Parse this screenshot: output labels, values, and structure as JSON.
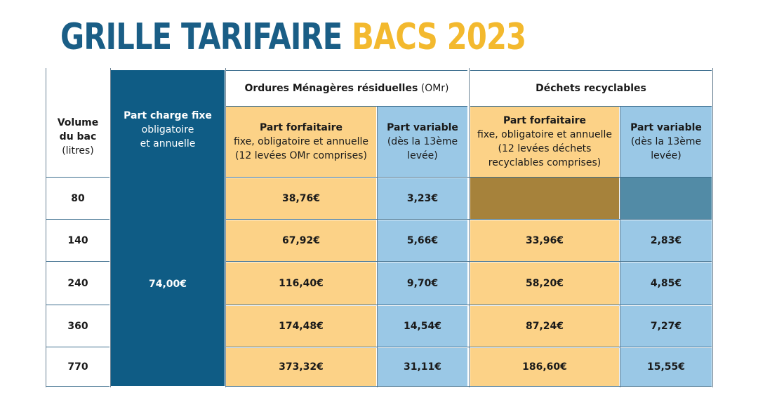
{
  "title": {
    "part1": "GRILLE TARIFAIRE",
    "part2": "BACS 2023"
  },
  "colors": {
    "title_dark": "#1a5e86",
    "title_accent": "#f3b92e",
    "navy": "#0f5c85",
    "orange": "#fcd287",
    "blue": "#9ac8e6",
    "olive": "#a6823b",
    "steel": "#528ba6"
  },
  "headers": {
    "volume": {
      "line1": "Volume",
      "line2": "du bac",
      "line3": "(litres)"
    },
    "fixed": {
      "line1": "Part charge fixe",
      "line2": "obligatoire",
      "line3": "et annuelle"
    },
    "omr_group": {
      "label": "Ordures Ménagères résiduelles",
      "abbr": "(OMr)"
    },
    "recy_group": {
      "label": "Déchets recyclables"
    },
    "omr_forfait": {
      "line1": "Part forfaitaire",
      "line2": "fixe, obligatoire et annuelle",
      "line3": "(12 levées OMr comprises)"
    },
    "omr_variable": {
      "line1": "Part variable",
      "line2": "(dès la 13ème",
      "line3": "levée)"
    },
    "recy_forfait": {
      "line1": "Part forfaitaire",
      "line2": "fixe, obligatoire et annuelle",
      "line3": "(12 levées déchets",
      "line4": "recyclables comprises)"
    },
    "recy_variable": {
      "line1": "Part variable",
      "line2": "(dès la 13ème",
      "line3": "levée)"
    }
  },
  "fixed_value": "74,00€",
  "rows": [
    {
      "volume": "80",
      "omr_forfait": "38,76€",
      "omr_variable": "3,23€",
      "recy_forfait": "",
      "recy_variable": ""
    },
    {
      "volume": "140",
      "omr_forfait": "67,92€",
      "omr_variable": "5,66€",
      "recy_forfait": "33,96€",
      "recy_variable": "2,83€"
    },
    {
      "volume": "240",
      "omr_forfait": "116,40€",
      "omr_variable": "9,70€",
      "recy_forfait": "58,20€",
      "recy_variable": "4,85€"
    },
    {
      "volume": "360",
      "omr_forfait": "174,48€",
      "omr_variable": "14,54€",
      "recy_forfait": "87,24€",
      "recy_variable": "7,27€"
    },
    {
      "volume": "770",
      "omr_forfait": "373,32€",
      "omr_variable": "31,11€",
      "recy_forfait": "186,60€",
      "recy_variable": "15,55€"
    }
  ]
}
